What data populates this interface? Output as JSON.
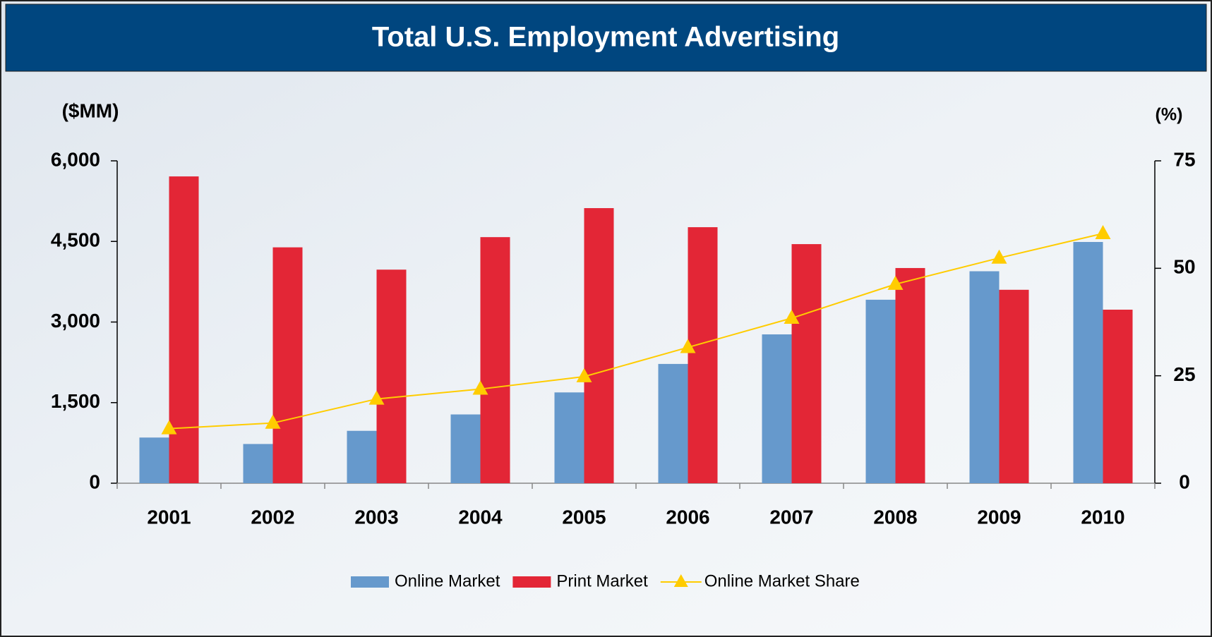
{
  "chart_data": {
    "type": "bar",
    "title": "Total U.S. Employment Advertising",
    "y_label": "($MM)",
    "y2_label": "(%)",
    "categories": [
      "2001",
      "2002",
      "2003",
      "2004",
      "2005",
      "2006",
      "2007",
      "2008",
      "2009",
      "2010"
    ],
    "series": [
      {
        "name": "Online Market",
        "type": "bar",
        "color": "#6699cc",
        "values": [
          850,
          730,
          975,
          1280,
          1690,
          2220,
          2770,
          3415,
          3945,
          4490
        ]
      },
      {
        "name": "Print Market",
        "type": "bar",
        "color": "#e32636",
        "values": [
          5710,
          4390,
          3975,
          4580,
          5120,
          4765,
          4450,
          4005,
          3600,
          3230
        ]
      },
      {
        "name": "Online Market Share",
        "type": "line",
        "axis": "y2",
        "color": "#ffcc00",
        "values": [
          12.7,
          14.0,
          19.6,
          21.9,
          24.8,
          31.6,
          38.4,
          46.3,
          52.4,
          58.1
        ]
      }
    ],
    "ylim": [
      0,
      6000
    ],
    "yticks": [
      0,
      {
        "value": 1500,
        "label": "1,500"
      },
      {
        "value": 3000,
        "label": "3,000"
      },
      {
        "value": 4500,
        "label": "4,500"
      },
      {
        "value": 6000,
        "label": "6,000"
      }
    ],
    "y2lim": [
      0,
      75
    ],
    "y2ticks": [
      0,
      25,
      50,
      75
    ],
    "legend": "bottom"
  }
}
